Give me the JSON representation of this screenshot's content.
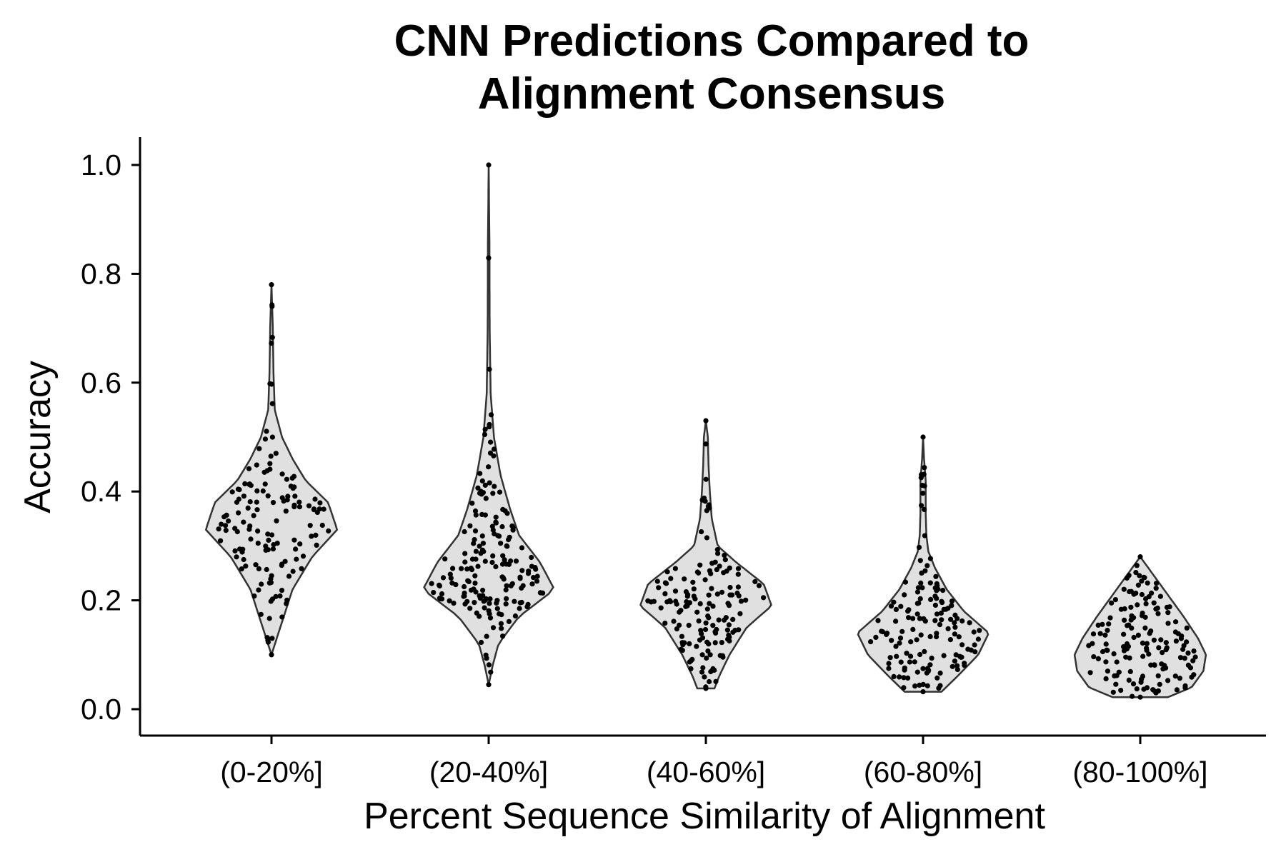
{
  "chart_data": {
    "type": "violin",
    "title": "CNN Predictions Compared to\nAlignment Consensus",
    "xlabel": "Percent Sequence Similarity of Alignment",
    "ylabel": "Accuracy",
    "ylim": [
      -0.05,
      1.05
    ],
    "yticks": [
      "0.0",
      "0.2",
      "0.4",
      "0.6",
      "0.8",
      "1.0"
    ],
    "yticks_values": [
      0,
      0.2,
      0.4,
      0.6,
      0.8,
      1.0
    ],
    "grid": false,
    "legend": "none",
    "colors": {
      "violin_fill": "#e0e0e0",
      "violin_stroke": "#333333",
      "point": "#000000",
      "axis": "#000000"
    },
    "categories": [
      "(0-20%]",
      "(20-40%]",
      "(40-60%]",
      "(60-80%]",
      "(80-100%]"
    ],
    "series": [
      {
        "category": "(0-20%]",
        "min": 0.1,
        "max": 0.78,
        "density": [
          [
            0.1,
            0.0
          ],
          [
            0.16,
            0.16
          ],
          [
            0.22,
            0.32
          ],
          [
            0.28,
            0.62
          ],
          [
            0.33,
            1.0
          ],
          [
            0.38,
            0.86
          ],
          [
            0.42,
            0.52
          ],
          [
            0.46,
            0.32
          ],
          [
            0.5,
            0.16
          ],
          [
            0.55,
            0.05
          ],
          [
            0.62,
            0.03
          ],
          [
            0.7,
            0.02
          ],
          [
            0.78,
            0.0
          ]
        ],
        "n_points": 140
      },
      {
        "category": "(20-40%]",
        "min": 0.045,
        "max": 1.0,
        "density": [
          [
            0.045,
            0.0
          ],
          [
            0.08,
            0.06
          ],
          [
            0.12,
            0.15
          ],
          [
            0.17,
            0.46
          ],
          [
            0.22,
            1.0
          ],
          [
            0.27,
            0.78
          ],
          [
            0.32,
            0.46
          ],
          [
            0.37,
            0.32
          ],
          [
            0.43,
            0.18
          ],
          [
            0.5,
            0.08
          ],
          [
            0.58,
            0.03
          ],
          [
            0.7,
            0.015
          ],
          [
            0.85,
            0.012
          ],
          [
            1.0,
            0.0
          ]
        ],
        "n_points": 180
      },
      {
        "category": "(40-60%]",
        "min": 0.038,
        "max": 0.53,
        "density": [
          [
            0.038,
            0.13
          ],
          [
            0.06,
            0.2
          ],
          [
            0.1,
            0.36
          ],
          [
            0.15,
            0.62
          ],
          [
            0.19,
            1.0
          ],
          [
            0.23,
            0.88
          ],
          [
            0.27,
            0.46
          ],
          [
            0.3,
            0.18
          ],
          [
            0.35,
            0.09
          ],
          [
            0.4,
            0.06
          ],
          [
            0.45,
            0.04
          ],
          [
            0.5,
            0.03
          ],
          [
            0.53,
            0.0
          ]
        ],
        "n_points": 150
      },
      {
        "category": "(60-80%]",
        "min": 0.032,
        "max": 0.5,
        "density": [
          [
            0.032,
            0.28
          ],
          [
            0.06,
            0.52
          ],
          [
            0.1,
            0.84
          ],
          [
            0.14,
            1.0
          ],
          [
            0.18,
            0.62
          ],
          [
            0.22,
            0.36
          ],
          [
            0.26,
            0.18
          ],
          [
            0.29,
            0.08
          ],
          [
            0.32,
            0.05
          ],
          [
            0.36,
            0.04
          ],
          [
            0.42,
            0.04
          ],
          [
            0.46,
            0.015
          ],
          [
            0.5,
            0.0
          ]
        ],
        "n_points": 145
      },
      {
        "category": "(80-100%]",
        "min": 0.022,
        "max": 0.28,
        "density": [
          [
            0.022,
            0.42
          ],
          [
            0.04,
            0.78
          ],
          [
            0.07,
            0.96
          ],
          [
            0.1,
            1.0
          ],
          [
            0.13,
            0.88
          ],
          [
            0.17,
            0.66
          ],
          [
            0.21,
            0.42
          ],
          [
            0.25,
            0.18
          ],
          [
            0.28,
            0.0
          ]
        ],
        "n_points": 150
      }
    ]
  }
}
